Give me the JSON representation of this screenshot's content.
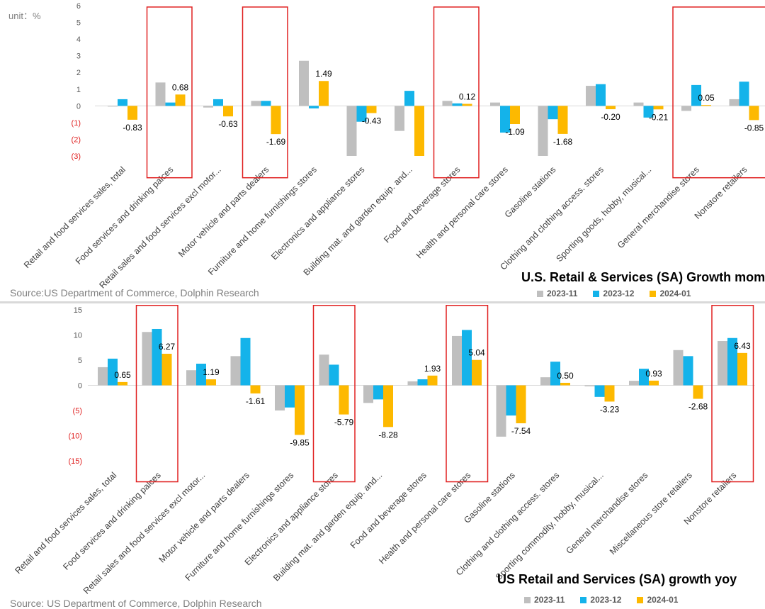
{
  "colors": {
    "s2023_11": "#bfbfbf",
    "s2023_12": "#14b3ea",
    "s2024_01": "#fdb900",
    "highlight": "#e02020",
    "axis_text": "#595959",
    "neg_tick": "#e02020"
  },
  "top": {
    "unit_label": "unit：%",
    "title": "U.S. Retail & Services (SA) Growth mom",
    "source": "Source:US Department of Commerce, Dolphin Research",
    "legend": [
      "2023-11",
      "2023-12",
      "2024-01"
    ]
  },
  "bottom": {
    "title": "US Retail and Services (SA) growth yoy",
    "source": "Source: US Department of Commerce, Dolphin Research",
    "legend": [
      "2023-11",
      "2023-12",
      "2024-01"
    ]
  },
  "chart_data": [
    {
      "type": "bar",
      "title": "U.S. Retail & Services (SA) Growth mom",
      "ylim": [
        -3,
        6
      ],
      "yticks": [
        "6",
        "5",
        "4",
        "3",
        "2",
        "1",
        "0",
        "(1)",
        "(2)",
        "(3)"
      ],
      "categories": [
        "Retail and food services sales, total",
        "Food services and drinking palces",
        "Retail sales and food services excl motor...",
        "Motor vehicle and parts dealers",
        "Furniture and home furnishings stores",
        "Electronics and appliance stores",
        "Building mat. and garden equip. and...",
        "Food and beverage stores",
        "Health and personal care stores",
        "Gasoline stations",
        "Clothing and clothing access. stores",
        "Sporting goods, hobby, musical...",
        "General merchandise stores",
        "Nonstore retailers"
      ],
      "series": [
        {
          "name": "2023-11",
          "values": [
            0.0,
            1.4,
            -0.1,
            0.3,
            2.7,
            -3.0,
            -1.5,
            0.3,
            0.2,
            -3.0,
            1.2,
            0.2,
            -0.3,
            0.4
          ]
        },
        {
          "name": "2023-12",
          "values": [
            0.4,
            0.2,
            0.4,
            0.3,
            -0.15,
            -0.95,
            0.9,
            0.15,
            -1.6,
            -0.8,
            1.3,
            -0.7,
            1.25,
            1.45
          ]
        },
        {
          "name": "2024-01",
          "values": [
            -0.83,
            0.68,
            -0.63,
            -1.69,
            1.49,
            -0.43,
            -3.0,
            0.12,
            -1.09,
            -1.68,
            -0.2,
            -0.21,
            0.05,
            -0.85
          ]
        }
      ],
      "data_labels": [
        "-0.83",
        "0.68",
        "-0.63",
        "-1.69",
        "1.49",
        "-0.43",
        "",
        "0.12",
        "-1.09",
        "-1.68",
        "-0.20",
        "-0.21",
        "0.05",
        "-0.85"
      ],
      "highlight_groups": [
        [
          1
        ],
        [
          3
        ],
        [
          7
        ],
        [
          12,
          13
        ]
      ]
    },
    {
      "type": "bar",
      "title": "US Retail and Services (SA) growth yoy",
      "ylim": [
        -15,
        15
      ],
      "yticks": [
        "15",
        "10",
        "5",
        "0",
        "(5)",
        "(10)",
        "(15)"
      ],
      "categories": [
        "Retail and food services sales, total",
        "Food services and drinking palces",
        "Retail sales and food services excl motor...",
        "Motor vehicle and parts dealers",
        "Furniture and home furnishings stores",
        "Electronics and appliance stores",
        "Building mat. and garden equip. and...",
        "Food and beverage stores",
        "Health and personal care stores",
        "Gasoline stations",
        "Clothing and clothing access. stores",
        "Sporting commodity, hobby, musical...",
        "General merchandise stores",
        "Miscellaneous store retailers",
        "Nonstore retailers"
      ],
      "series": [
        {
          "name": "2023-11",
          "values": [
            3.6,
            10.6,
            3.0,
            5.8,
            -5.0,
            6.1,
            -3.5,
            0.8,
            9.8,
            -10.2,
            1.6,
            -0.2,
            0.9,
            7.0,
            8.8
          ]
        },
        {
          "name": "2023-12",
          "values": [
            5.3,
            11.2,
            4.3,
            9.4,
            -4.4,
            4.1,
            -2.8,
            1.2,
            11.0,
            -6.0,
            4.7,
            -2.3,
            3.3,
            5.8,
            9.4
          ]
        },
        {
          "name": "2024-01",
          "values": [
            0.65,
            6.27,
            1.19,
            -1.61,
            -9.85,
            -5.79,
            -8.28,
            1.93,
            5.04,
            -7.54,
            0.5,
            -3.23,
            0.93,
            -2.68,
            6.43
          ]
        }
      ],
      "data_labels": [
        "0.65",
        "6.27",
        "1.19",
        "-1.61",
        "-9.85",
        "-5.79",
        "-8.28",
        "1.93",
        "5.04",
        "-7.54",
        "0.50",
        "-3.23",
        "0.93",
        "-2.68",
        "6.43"
      ],
      "highlight_groups": [
        [
          1
        ],
        [
          5
        ],
        [
          8
        ],
        [
          14
        ]
      ]
    }
  ]
}
